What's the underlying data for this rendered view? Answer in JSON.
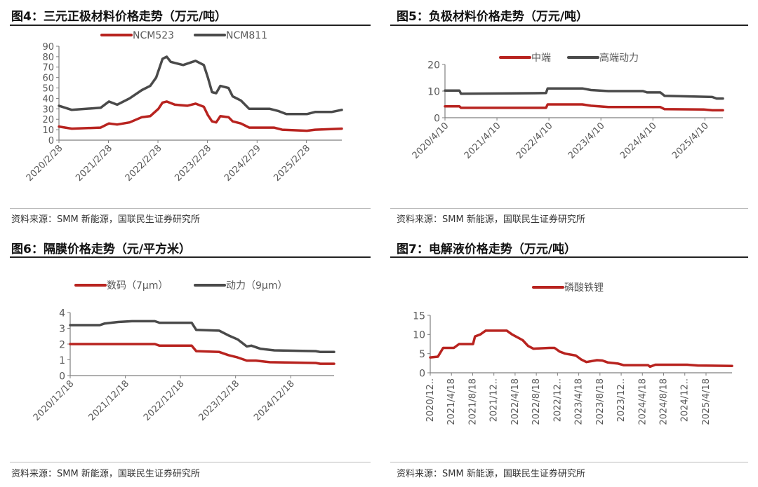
{
  "panels": [
    {
      "title": "图4：三元正极材料价格走势（万元/吨）",
      "source": "资料来源：SMM 新能源，国联民生证券研究所"
    },
    {
      "title": "图5：负极材料价格走势（万元/吨）",
      "source": "资料来源：SMM 新能源，国联民生证券研究所"
    },
    {
      "title": "图6：隔膜价格走势（元/平方米）",
      "source": "资料来源：SMM 新能源，国联民生证券研究所"
    },
    {
      "title": "图7：电解液价格走势（万元/吨）",
      "source": "资料来源：SMM 新能源，国联民生证券研究所"
    }
  ],
  "colors": {
    "red": "#B8231F",
    "gray": "#4A4A4A",
    "axis": "#7F7F7F"
  },
  "chart_data": [
    {
      "type": "line",
      "ylim": [
        0,
        90
      ],
      "yticks": [
        0,
        10,
        20,
        30,
        40,
        50,
        60,
        70,
        80,
        90
      ],
      "xlim": [
        "2020-02-28",
        "2025-11-15"
      ],
      "xticks": [
        [
          "2020-02-28",
          "2020/2/28"
        ],
        [
          "2021-02-28",
          "2021/2/28"
        ],
        [
          "2022-02-28",
          "2022/2/28"
        ],
        [
          "2023-02-28",
          "2023/2/28"
        ],
        [
          "2024-02-29",
          "2024/2/29"
        ],
        [
          "2025-02-28",
          "2025/2/28"
        ]
      ],
      "legend": "top",
      "series": [
        {
          "name": "NCM523",
          "color": "#B8231F",
          "points": [
            [
              "2020-02-28",
              13
            ],
            [
              "2020-06-01",
              11
            ],
            [
              "2021-01-01",
              12
            ],
            [
              "2021-03-01",
              16
            ],
            [
              "2021-05-01",
              15
            ],
            [
              "2021-08-01",
              17
            ],
            [
              "2021-11-01",
              22
            ],
            [
              "2022-01-01",
              23
            ],
            [
              "2022-03-01",
              30
            ],
            [
              "2022-04-01",
              36
            ],
            [
              "2022-05-01",
              37
            ],
            [
              "2022-07-01",
              34
            ],
            [
              "2022-10-01",
              33
            ],
            [
              "2022-12-01",
              35
            ],
            [
              "2023-02-01",
              32
            ],
            [
              "2023-03-01",
              24
            ],
            [
              "2023-04-01",
              18
            ],
            [
              "2023-05-01",
              17
            ],
            [
              "2023-06-01",
              23
            ],
            [
              "2023-08-01",
              22
            ],
            [
              "2023-09-01",
              18
            ],
            [
              "2023-11-01",
              16
            ],
            [
              "2024-01-01",
              12
            ],
            [
              "2024-07-01",
              12
            ],
            [
              "2024-09-01",
              10
            ],
            [
              "2025-03-01",
              9
            ],
            [
              "2025-05-01",
              10
            ],
            [
              "2025-11-15",
              11
            ]
          ]
        },
        {
          "name": "NCM811",
          "color": "#4A4A4A",
          "points": [
            [
              "2020-02-28",
              33
            ],
            [
              "2020-06-01",
              29
            ],
            [
              "2021-01-01",
              31
            ],
            [
              "2021-03-01",
              37
            ],
            [
              "2021-05-01",
              34
            ],
            [
              "2021-08-01",
              40
            ],
            [
              "2021-11-01",
              48
            ],
            [
              "2022-01-01",
              52
            ],
            [
              "2022-02-15",
              60
            ],
            [
              "2022-04-01",
              78
            ],
            [
              "2022-05-01",
              80
            ],
            [
              "2022-06-01",
              75
            ],
            [
              "2022-09-01",
              72
            ],
            [
              "2022-12-01",
              76
            ],
            [
              "2023-02-01",
              72
            ],
            [
              "2023-03-01",
              60
            ],
            [
              "2023-04-01",
              46
            ],
            [
              "2023-05-01",
              45
            ],
            [
              "2023-06-01",
              52
            ],
            [
              "2023-08-01",
              50
            ],
            [
              "2023-09-01",
              42
            ],
            [
              "2023-11-01",
              38
            ],
            [
              "2024-01-01",
              30
            ],
            [
              "2024-06-01",
              30
            ],
            [
              "2024-08-01",
              28
            ],
            [
              "2024-10-01",
              25
            ],
            [
              "2025-03-01",
              25
            ],
            [
              "2025-05-01",
              27
            ],
            [
              "2025-09-01",
              27
            ],
            [
              "2025-11-15",
              29
            ]
          ]
        }
      ]
    },
    {
      "type": "line",
      "ylim": [
        0,
        20
      ],
      "yticks": [
        0,
        10,
        20
      ],
      "xlim": [
        "2020-04-10",
        "2025-08-15"
      ],
      "xticks": [
        [
          "2020-04-10",
          "2020/4/10"
        ],
        [
          "2021-04-10",
          "2021/4/10"
        ],
        [
          "2022-04-10",
          "2022/4/10"
        ],
        [
          "2023-04-10",
          "2023/4/10"
        ],
        [
          "2024-04-10",
          "2024/4/10"
        ],
        [
          "2025-04-10",
          "2025/4/10"
        ]
      ],
      "legend": "top",
      "series": [
        {
          "name": "中端",
          "color": "#B8231F",
          "points": [
            [
              "2020-04-10",
              4.3
            ],
            [
              "2020-07-20",
              4.3
            ],
            [
              "2020-08-01",
              3.7
            ],
            [
              "2022-03-20",
              3.7
            ],
            [
              "2022-04-01",
              5
            ],
            [
              "2022-12-01",
              5
            ],
            [
              "2023-02-01",
              4.5
            ],
            [
              "2023-06-01",
              4
            ],
            [
              "2024-06-01",
              4
            ],
            [
              "2024-07-01",
              3.2
            ],
            [
              "2025-04-01",
              3.1
            ],
            [
              "2025-06-01",
              2.8
            ],
            [
              "2025-08-15",
              2.8
            ]
          ]
        },
        {
          "name": "高端动力",
          "color": "#4A4A4A",
          "points": [
            [
              "2020-04-10",
              10.2
            ],
            [
              "2020-07-20",
              10.2
            ],
            [
              "2020-08-01",
              9
            ],
            [
              "2022-01-01",
              9.2
            ],
            [
              "2022-03-20",
              9.3
            ],
            [
              "2022-04-01",
              11
            ],
            [
              "2022-12-01",
              11
            ],
            [
              "2023-02-01",
              10.4
            ],
            [
              "2023-06-01",
              10
            ],
            [
              "2024-02-01",
              10
            ],
            [
              "2024-03-01",
              9.5
            ],
            [
              "2024-06-01",
              9.5
            ],
            [
              "2024-07-01",
              8.2
            ],
            [
              "2025-06-01",
              7.8
            ],
            [
              "2025-07-01",
              7.2
            ],
            [
              "2025-08-15",
              7.2
            ]
          ]
        }
      ]
    },
    {
      "type": "line",
      "ylim": [
        0,
        4
      ],
      "yticks": [
        0,
        1,
        2,
        3,
        4
      ],
      "xlim": [
        "2020-12-18",
        "2025-10-01"
      ],
      "xticks": [
        [
          "2020-12-18",
          "2020/12/18"
        ],
        [
          "2021-12-18",
          "2021/12/18"
        ],
        [
          "2022-12-18",
          "2022/12/18"
        ],
        [
          "2023-12-18",
          "2023/12/18"
        ],
        [
          "2024-12-18",
          "2024/12/18"
        ]
      ],
      "legend": "top",
      "series": [
        {
          "name": "数码（7μm）",
          "color": "#B8231F",
          "points": [
            [
              "2020-12-18",
              2.0
            ],
            [
              "2022-07-01",
              2.0
            ],
            [
              "2022-08-01",
              1.9
            ],
            [
              "2023-03-01",
              1.9
            ],
            [
              "2023-04-01",
              1.55
            ],
            [
              "2023-09-01",
              1.5
            ],
            [
              "2023-11-01",
              1.3
            ],
            [
              "2024-01-01",
              1.15
            ],
            [
              "2024-03-01",
              0.95
            ],
            [
              "2024-05-01",
              0.95
            ],
            [
              "2024-08-01",
              0.85
            ],
            [
              "2025-06-01",
              0.8
            ],
            [
              "2025-07-01",
              0.75
            ],
            [
              "2025-10-01",
              0.75
            ]
          ]
        },
        {
          "name": "动力（9μm）",
          "color": "#4A4A4A",
          "points": [
            [
              "2020-12-18",
              3.2
            ],
            [
              "2021-07-01",
              3.2
            ],
            [
              "2021-08-01",
              3.3
            ],
            [
              "2021-11-01",
              3.4
            ],
            [
              "2022-02-01",
              3.45
            ],
            [
              "2022-07-01",
              3.45
            ],
            [
              "2022-08-01",
              3.35
            ],
            [
              "2023-03-01",
              3.35
            ],
            [
              "2023-04-01",
              2.9
            ],
            [
              "2023-09-01",
              2.85
            ],
            [
              "2023-11-01",
              2.55
            ],
            [
              "2024-01-01",
              2.3
            ],
            [
              "2024-03-01",
              1.85
            ],
            [
              "2024-04-01",
              1.9
            ],
            [
              "2024-06-01",
              1.7
            ],
            [
              "2024-09-01",
              1.6
            ],
            [
              "2025-06-01",
              1.55
            ],
            [
              "2025-07-01",
              1.5
            ],
            [
              "2025-10-01",
              1.5
            ]
          ]
        }
      ]
    },
    {
      "type": "line",
      "ylim": [
        0,
        15
      ],
      "yticks": [
        0,
        5,
        10,
        15
      ],
      "xlim": [
        "2020-12-18",
        "2025-09-15"
      ],
      "xticks": [
        [
          "2020-12-18",
          "2020/12.."
        ],
        [
          "2021-04-18",
          "2021/4/18"
        ],
        [
          "2021-08-18",
          "2021/8/18"
        ],
        [
          "2021-12-18",
          "2021/12.."
        ],
        [
          "2022-04-18",
          "2022/4/18"
        ],
        [
          "2022-08-18",
          "2022/8/18"
        ],
        [
          "2022-12-18",
          "2022/12.."
        ],
        [
          "2023-04-18",
          "2023/4/18"
        ],
        [
          "2023-08-18",
          "2023/8/18"
        ],
        [
          "2023-12-18",
          "2023/12.."
        ],
        [
          "2024-04-18",
          "2024/4/18"
        ],
        [
          "2024-08-18",
          "2024/8/18"
        ],
        [
          "2024-12-18",
          "2024/12.."
        ],
        [
          "2025-04-18",
          "2025/4/18"
        ]
      ],
      "legend": "top",
      "series": [
        {
          "name": "磷酸铁锂",
          "color": "#B8231F",
          "points": [
            [
              "2020-12-18",
              4
            ],
            [
              "2021-02-01",
              4.2
            ],
            [
              "2021-03-01",
              6.5
            ],
            [
              "2021-05-01",
              6.5
            ],
            [
              "2021-06-01",
              7.5
            ],
            [
              "2021-08-20",
              7.5
            ],
            [
              "2021-09-01",
              9.5
            ],
            [
              "2021-10-01",
              10
            ],
            [
              "2021-11-01",
              11
            ],
            [
              "2022-03-01",
              11
            ],
            [
              "2022-04-01",
              10
            ],
            [
              "2022-06-01",
              8.5
            ],
            [
              "2022-07-01",
              7
            ],
            [
              "2022-08-01",
              6.3
            ],
            [
              "2022-11-01",
              6.5
            ],
            [
              "2022-12-01",
              6.5
            ],
            [
              "2023-01-01",
              5.5
            ],
            [
              "2023-02-01",
              5
            ],
            [
              "2023-04-01",
              4.5
            ],
            [
              "2023-05-01",
              3.5
            ],
            [
              "2023-06-01",
              2.8
            ],
            [
              "2023-08-01",
              3.3
            ],
            [
              "2023-09-01",
              3.2
            ],
            [
              "2023-10-01",
              2.7
            ],
            [
              "2023-12-01",
              2.4
            ],
            [
              "2024-01-01",
              2.0
            ],
            [
              "2024-05-20",
              2.0
            ],
            [
              "2024-06-01",
              1.6
            ],
            [
              "2024-07-01",
              2.1
            ],
            [
              "2025-01-01",
              2.1
            ],
            [
              "2025-03-01",
              1.9
            ],
            [
              "2025-09-15",
              1.8
            ]
          ]
        }
      ]
    }
  ]
}
